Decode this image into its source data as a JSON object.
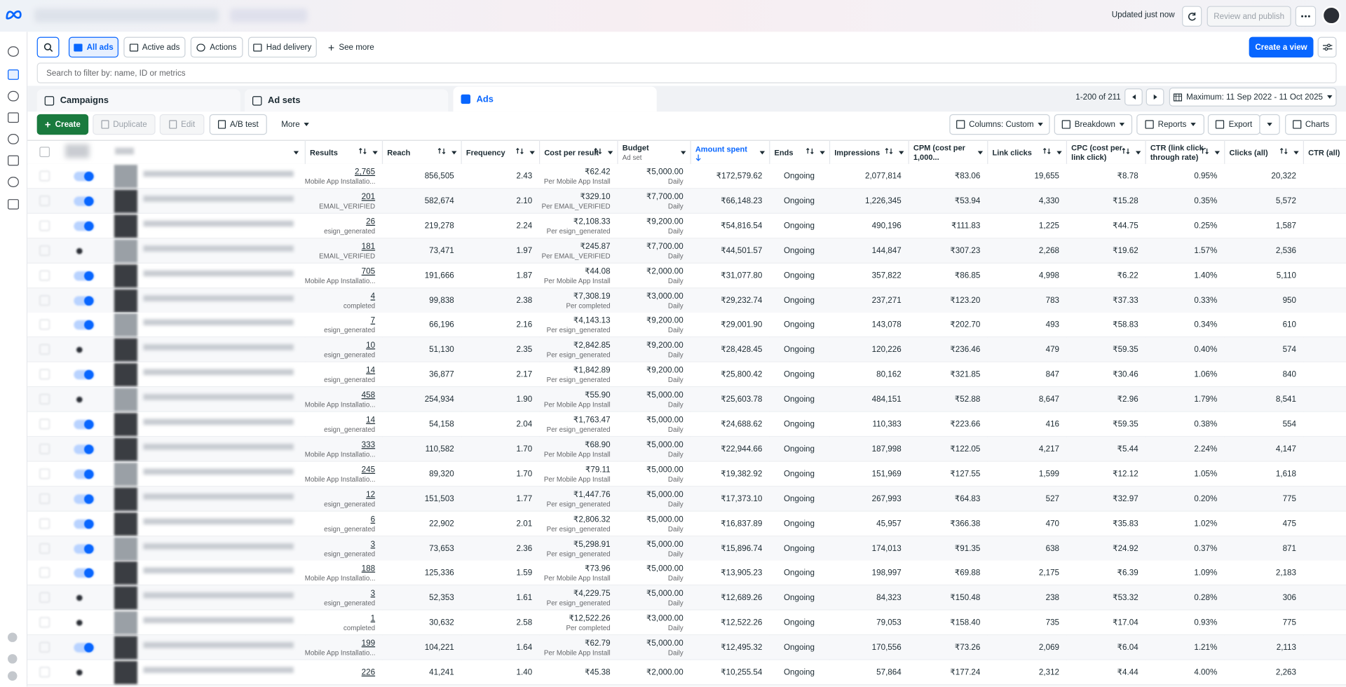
{
  "top_bar": {
    "status": "Updated just now",
    "publish": "Review and publish"
  },
  "toolbar": {
    "filters": [
      "All ads",
      "Active ads",
      "Actions",
      "Had delivery"
    ],
    "see_more": "See more",
    "create_view": "Create a view"
  },
  "search": {
    "placeholder": "Search to filter by: name, ID or metrics"
  },
  "tabs": [
    "Campaigns",
    "Ad sets",
    "Ads"
  ],
  "pagination": "1-200 of 211",
  "date_range": "Maximum: 11 Sep 2022 - 11 Oct 2025",
  "actions": {
    "left": [
      "Create",
      "Duplicate",
      "Edit",
      "A/B test",
      "More"
    ],
    "right": [
      "Columns: Custom",
      "Breakdown",
      "Reports",
      "Export",
      "Charts"
    ]
  },
  "table": {
    "columns": [
      {
        "label": "Results"
      },
      {
        "label": "Reach"
      },
      {
        "label": "Frequency"
      },
      {
        "label": "Cost per result"
      },
      {
        "label": "Budget",
        "sub": "Ad set"
      },
      {
        "label": "Amount spent"
      },
      {
        "label": "Ends"
      },
      {
        "label": "Impressions"
      },
      {
        "label": "CPM (cost per 1,000..."
      },
      {
        "label": "Link clicks"
      },
      {
        "label": "CPC (cost per link click)"
      },
      {
        "label": "CTR (link click-through rate)"
      },
      {
        "label": "Clicks (all)"
      },
      {
        "label": "CTR (all)"
      }
    ],
    "rows": [
      [
        {
          "text": "2,765",
          "sub": "Mobile App Installatio..."
        },
        "856,505",
        "2.43",
        {
          "text": "₹62.42",
          "sub": "Per Mobile App Install"
        },
        {
          "text": "₹5,000.00",
          "sub": "Daily"
        },
        "₹172,579.62",
        "Ongoing",
        "2,077,814",
        "₹83.06",
        "19,655",
        "₹8.78",
        "0.95%",
        "20,322"
      ],
      [
        {
          "text": "201",
          "sub": "EMAIL_VERIFIED"
        },
        "582,674",
        "2.10",
        {
          "text": "₹329.10",
          "sub": "Per EMAIL_VERIFIED"
        },
        {
          "text": "₹7,700.00",
          "sub": "Daily"
        },
        "₹66,148.23",
        "Ongoing",
        "1,226,345",
        "₹53.94",
        "4,330",
        "₹15.28",
        "0.35%",
        "5,572"
      ],
      [
        {
          "text": "26",
          "sub": "esign_generated"
        },
        "219,278",
        "2.24",
        {
          "text": "₹2,108.33",
          "sub": "Per esign_generated"
        },
        {
          "text": "₹9,200.00",
          "sub": "Daily"
        },
        "₹54,816.54",
        "Ongoing",
        "490,196",
        "₹111.83",
        "1,225",
        "₹44.75",
        "0.25%",
        "1,587"
      ],
      [
        {
          "text": "181",
          "sub": "EMAIL_VERIFIED"
        },
        "73,471",
        "1.97",
        {
          "text": "₹245.87",
          "sub": "Per EMAIL_VERIFIED"
        },
        {
          "text": "₹7,700.00",
          "sub": "Daily"
        },
        "₹44,501.57",
        "Ongoing",
        "144,847",
        "₹307.23",
        "2,268",
        "₹19.62",
        "1.57%",
        "2,536"
      ],
      [
        {
          "text": "705",
          "sub": "Mobile App Installatio..."
        },
        "191,666",
        "1.87",
        {
          "text": "₹44.08",
          "sub": "Per Mobile App Install"
        },
        {
          "text": "₹2,000.00",
          "sub": "Daily"
        },
        "₹31,077.80",
        "Ongoing",
        "357,822",
        "₹86.85",
        "4,998",
        "₹6.22",
        "1.40%",
        "5,110"
      ],
      [
        {
          "text": "4",
          "sub": "completed"
        },
        "99,838",
        "2.38",
        {
          "text": "₹7,308.19",
          "sub": "Per completed"
        },
        {
          "text": "₹3,000.00",
          "sub": "Daily"
        },
        "₹29,232.74",
        "Ongoing",
        "237,271",
        "₹123.20",
        "783",
        "₹37.33",
        "0.33%",
        "950"
      ],
      [
        {
          "text": "7",
          "sub": "esign_generated"
        },
        "66,196",
        "2.16",
        {
          "text": "₹4,143.13",
          "sub": "Per esign_generated"
        },
        {
          "text": "₹9,200.00",
          "sub": "Daily"
        },
        "₹29,001.90",
        "Ongoing",
        "143,078",
        "₹202.70",
        "493",
        "₹58.83",
        "0.34%",
        "610"
      ],
      [
        {
          "text": "10",
          "sub": "esign_generated"
        },
        "51,130",
        "2.35",
        {
          "text": "₹2,842.85",
          "sub": "Per esign_generated"
        },
        {
          "text": "₹9,200.00",
          "sub": "Daily"
        },
        "₹28,428.45",
        "Ongoing",
        "120,226",
        "₹236.46",
        "479",
        "₹59.35",
        "0.40%",
        "574"
      ],
      [
        {
          "text": "14",
          "sub": "esign_generated"
        },
        "36,877",
        "2.17",
        {
          "text": "₹1,842.89",
          "sub": "Per esign_generated"
        },
        {
          "text": "₹9,200.00",
          "sub": "Daily"
        },
        "₹25,800.42",
        "Ongoing",
        "80,162",
        "₹321.85",
        "847",
        "₹30.46",
        "1.06%",
        "840"
      ],
      [
        {
          "text": "458",
          "sub": "Mobile App Installatio..."
        },
        "254,934",
        "1.90",
        {
          "text": "₹55.90",
          "sub": "Per Mobile App Install"
        },
        {
          "text": "₹5,000.00",
          "sub": "Daily"
        },
        "₹25,603.78",
        "Ongoing",
        "484,151",
        "₹52.88",
        "8,647",
        "₹2.96",
        "1.79%",
        "8,541"
      ],
      [
        {
          "text": "14",
          "sub": "esign_generated"
        },
        "54,158",
        "2.04",
        {
          "text": "₹1,763.47",
          "sub": "Per esign_generated"
        },
        {
          "text": "₹5,000.00",
          "sub": "Daily"
        },
        "₹24,688.62",
        "Ongoing",
        "110,383",
        "₹223.66",
        "416",
        "₹59.35",
        "0.38%",
        "554"
      ],
      [
        {
          "text": "333",
          "sub": "Mobile App Installatio..."
        },
        "110,582",
        "1.70",
        {
          "text": "₹68.90",
          "sub": "Per Mobile App Install"
        },
        {
          "text": "₹5,000.00",
          "sub": "Daily"
        },
        "₹22,944.66",
        "Ongoing",
        "187,998",
        "₹122.05",
        "4,217",
        "₹5.44",
        "2.24%",
        "4,147"
      ],
      [
        {
          "text": "245",
          "sub": "Mobile App Installatio..."
        },
        "89,320",
        "1.70",
        {
          "text": "₹79.11",
          "sub": "Per Mobile App Install"
        },
        {
          "text": "₹5,000.00",
          "sub": "Daily"
        },
        "₹19,382.92",
        "Ongoing",
        "151,969",
        "₹127.55",
        "1,599",
        "₹12.12",
        "1.05%",
        "1,618"
      ],
      [
        {
          "text": "12",
          "sub": "esign_generated"
        },
        "151,503",
        "1.77",
        {
          "text": "₹1,447.76",
          "sub": "Per esign_generated"
        },
        {
          "text": "₹5,000.00",
          "sub": "Daily"
        },
        "₹17,373.10",
        "Ongoing",
        "267,993",
        "₹64.83",
        "527",
        "₹32.97",
        "0.20%",
        "775"
      ],
      [
        {
          "text": "6",
          "sub": "esign_generated"
        },
        "22,902",
        "2.01",
        {
          "text": "₹2,806.32",
          "sub": "Per esign_generated"
        },
        {
          "text": "₹5,000.00",
          "sub": "Daily"
        },
        "₹16,837.89",
        "Ongoing",
        "45,957",
        "₹366.38",
        "470",
        "₹35.83",
        "1.02%",
        "475"
      ],
      [
        {
          "text": "3",
          "sub": "esign_generated"
        },
        "73,653",
        "2.36",
        {
          "text": "₹5,298.91",
          "sub": "Per esign_generated"
        },
        {
          "text": "₹5,000.00",
          "sub": "Daily"
        },
        "₹15,896.74",
        "Ongoing",
        "174,013",
        "₹91.35",
        "638",
        "₹24.92",
        "0.37%",
        "871"
      ],
      [
        {
          "text": "188",
          "sub": "Mobile App Installatio..."
        },
        "125,336",
        "1.59",
        {
          "text": "₹73.96",
          "sub": "Per Mobile App Install"
        },
        {
          "text": "₹5,000.00",
          "sub": "Daily"
        },
        "₹13,905.23",
        "Ongoing",
        "198,997",
        "₹69.88",
        "2,175",
        "₹6.39",
        "1.09%",
        "2,183"
      ],
      [
        {
          "text": "3",
          "sub": "esign_generated"
        },
        "52,353",
        "1.61",
        {
          "text": "₹4,229.75",
          "sub": "Per esign_generated"
        },
        {
          "text": "₹5,000.00",
          "sub": "Daily"
        },
        "₹12,689.26",
        "Ongoing",
        "84,323",
        "₹150.48",
        "238",
        "₹53.32",
        "0.28%",
        "306"
      ],
      [
        {
          "text": "1",
          "sub": "completed"
        },
        "30,632",
        "2.58",
        {
          "text": "₹12,522.26",
          "sub": "Per completed"
        },
        {
          "text": "₹3,000.00",
          "sub": "Daily"
        },
        "₹12,522.26",
        "Ongoing",
        "79,053",
        "₹158.40",
        "735",
        "₹17.04",
        "0.93%",
        "775"
      ],
      [
        {
          "text": "199",
          "sub": "Mobile App Installatio..."
        },
        "104,221",
        "1.64",
        {
          "text": "₹62.79",
          "sub": "Per Mobile App Install"
        },
        {
          "text": "₹5,000.00",
          "sub": "Daily"
        },
        "₹12,495.32",
        "Ongoing",
        "170,556",
        "₹73.26",
        "2,069",
        "₹6.04",
        "1.21%",
        "2,113"
      ],
      [
        "226",
        "41,241",
        "1.40",
        "₹45.38",
        "₹2,000.00",
        "₹10,255.54",
        "Ongoing",
        "57,864",
        "₹177.24",
        "2,312",
        "₹4.44",
        "4.00%",
        "2,263"
      ]
    ]
  }
}
